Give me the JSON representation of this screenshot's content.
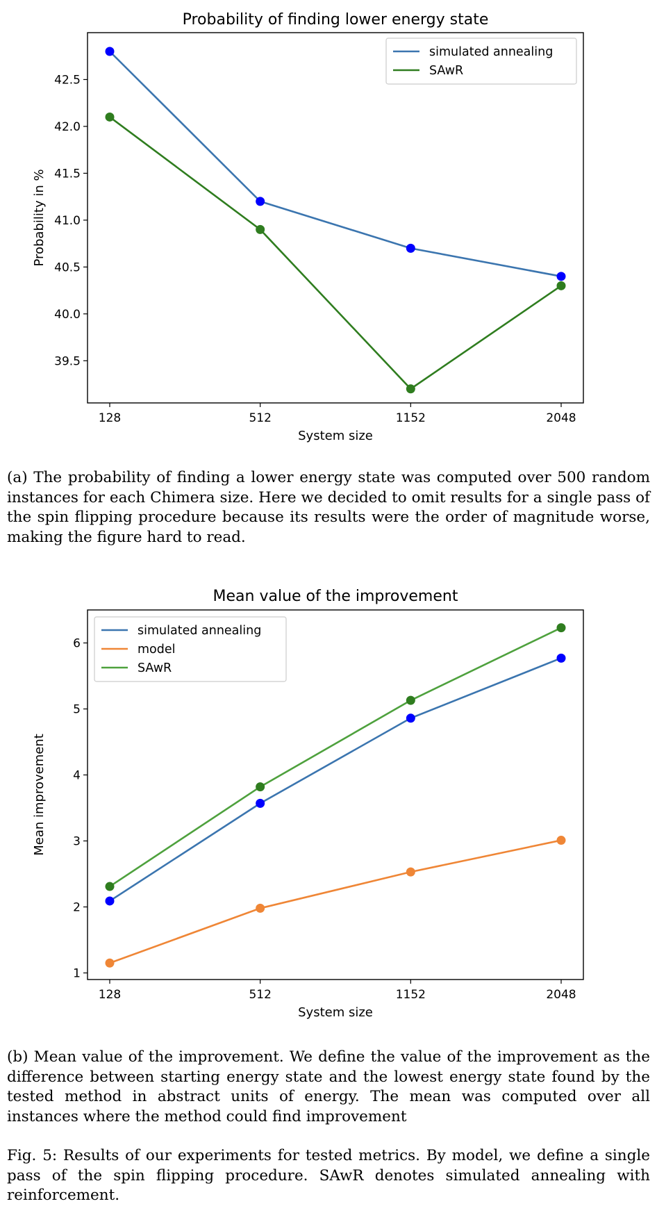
{
  "chart_data": [
    {
      "type": "line",
      "title": "Probability of finding lower energy state",
      "xlabel": "System size",
      "ylabel": "Probability in %",
      "categories": [
        "128",
        "512",
        "1152",
        "2048"
      ],
      "ylim": [
        39.05,
        43.0
      ],
      "yticks": [
        39.5,
        40.0,
        40.5,
        41.0,
        41.5,
        42.0,
        42.5
      ],
      "ytick_labels": [
        "39.5",
        "40.0",
        "40.5",
        "41.0",
        "41.5",
        "42.0",
        "42.5"
      ],
      "legend_position": "top-right",
      "grid": false,
      "series": [
        {
          "name": "simulated annealing",
          "values": [
            42.8,
            41.2,
            40.7,
            40.4
          ],
          "line_color": "#3b75af",
          "marker_color": "#0000ff"
        },
        {
          "name": "SAwR",
          "values": [
            42.1,
            40.9,
            39.2,
            40.3
          ],
          "line_color": "#2f7d1f",
          "marker_color": "#2f7d1f"
        }
      ]
    },
    {
      "type": "line",
      "title": "Mean value of the improvement",
      "xlabel": "System size",
      "ylabel": "Mean improvement",
      "categories": [
        "128",
        "512",
        "1152",
        "2048"
      ],
      "ylim": [
        0.9,
        6.5
      ],
      "yticks": [
        1,
        2,
        3,
        4,
        5,
        6
      ],
      "ytick_labels": [
        "1",
        "2",
        "3",
        "4",
        "5",
        "6"
      ],
      "legend_position": "top-left",
      "grid": false,
      "series": [
        {
          "name": "simulated annealing",
          "values": [
            2.09,
            3.57,
            4.86,
            5.77
          ],
          "line_color": "#3b75af",
          "marker_color": "#0000ff"
        },
        {
          "name": "model",
          "values": [
            1.15,
            1.98,
            2.53,
            3.01
          ],
          "line_color": "#ef8636",
          "marker_color": "#ef8636"
        },
        {
          "name": "SAwR",
          "values": [
            2.31,
            3.82,
            5.13,
            6.23
          ],
          "line_color": "#4ea13d",
          "marker_color": "#2f7d1f"
        }
      ]
    }
  ],
  "captions": {
    "a": "(a) The probability of finding a lower energy state was computed over 500 random instances for each Chimera size. Here we decided to omit results for a single pass of the spin flipping procedure because its results were the order of magnitude worse, making the figure hard to read.",
    "b": "(b) Mean value of the improvement. We define the value of the improvement as the difference between starting energy state and the lowest energy state found by the tested method in abstract units of energy. The mean was computed over all instances where the method could find improvement",
    "figure": "Fig. 5: Results of our experiments for tested metrics. By model, we define a single pass of the spin flipping procedure. SAwR denotes simulated annealing with reinforcement."
  }
}
